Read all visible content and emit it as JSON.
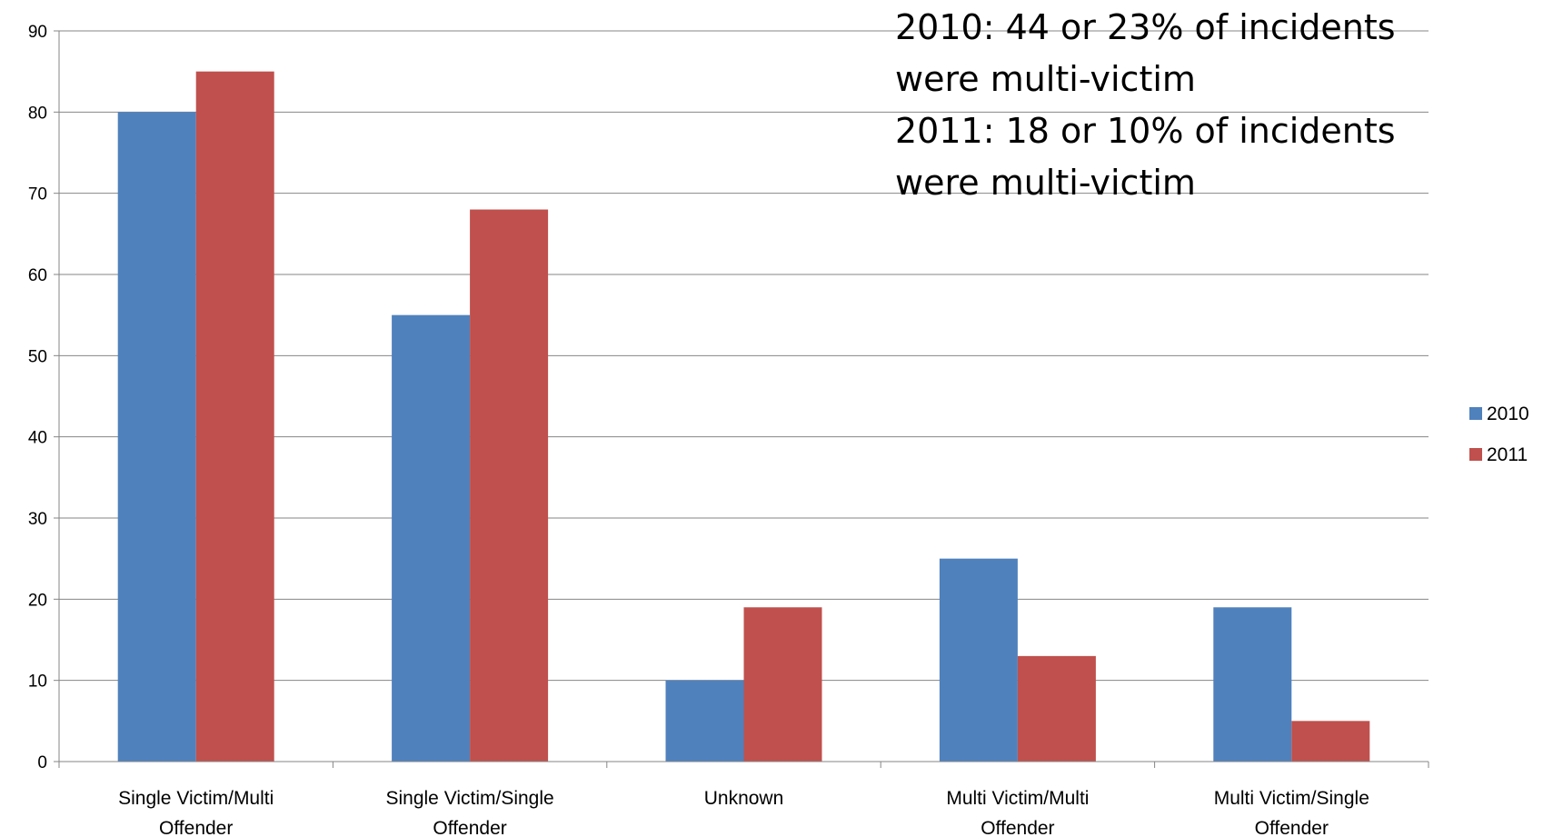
{
  "chart_data": {
    "type": "bar",
    "categories": [
      [
        "Single Victim/Multi",
        "Offender"
      ],
      [
        "Single Victim/Single",
        "Offender"
      ],
      [
        "Unknown"
      ],
      [
        "Multi Victim/Multi",
        "Offender"
      ],
      [
        "Multi Victim/Single",
        "Offender"
      ]
    ],
    "series": [
      {
        "name": "2010",
        "color": "#4F81BD",
        "values": [
          80,
          55,
          10,
          25,
          19
        ]
      },
      {
        "name": "2011",
        "color": "#C0504D",
        "values": [
          85,
          68,
          19,
          13,
          5
        ]
      }
    ],
    "ylim": [
      0,
      90
    ],
    "yticks": [
      0,
      10,
      20,
      30,
      40,
      50,
      60,
      70,
      80,
      90
    ],
    "grid": true,
    "legend_position": "right",
    "annotations": [
      "2010: 44 or 23% of incidents",
      "were multi-victim",
      "2011: 18 or 10% of incidents",
      "were multi-victim"
    ]
  }
}
